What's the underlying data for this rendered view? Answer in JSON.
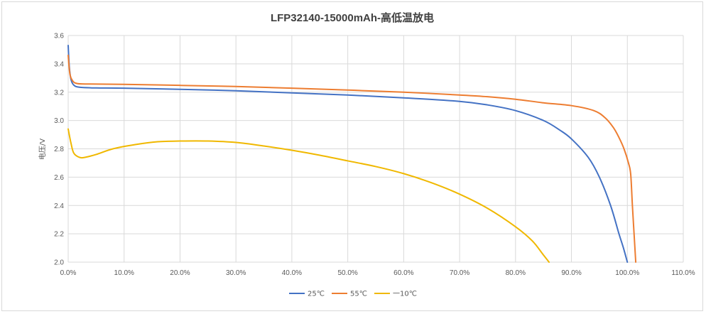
{
  "chart_data": {
    "type": "line",
    "title": "LFP32140-15000mAh-高低温放电",
    "xlabel": "",
    "ylabel": "电压/V",
    "xlim": [
      0,
      110
    ],
    "ylim": [
      2.0,
      3.6
    ],
    "x_ticks": [
      "0.0%",
      "10.0%",
      "20.0%",
      "30.0%",
      "40.0%",
      "50.0%",
      "60.0%",
      "70.0%",
      "80.0%",
      "90.0%",
      "100.0%",
      "110.0%"
    ],
    "y_ticks": [
      "2.0",
      "2.2",
      "2.4",
      "2.6",
      "2.8",
      "3.0",
      "3.2",
      "3.4",
      "3.6"
    ],
    "grid": true,
    "legend_position": "bottom",
    "series": [
      {
        "name": "25℃",
        "color": "#4472c4",
        "points": [
          [
            0,
            3.53
          ],
          [
            0.2,
            3.38
          ],
          [
            0.5,
            3.29
          ],
          [
            1.0,
            3.25
          ],
          [
            2,
            3.235
          ],
          [
            5,
            3.23
          ],
          [
            10,
            3.228
          ],
          [
            20,
            3.22
          ],
          [
            30,
            3.21
          ],
          [
            40,
            3.195
          ],
          [
            50,
            3.18
          ],
          [
            60,
            3.16
          ],
          [
            70,
            3.135
          ],
          [
            75,
            3.11
          ],
          [
            80,
            3.07
          ],
          [
            85,
            3.0
          ],
          [
            88,
            2.93
          ],
          [
            90,
            2.87
          ],
          [
            93,
            2.74
          ],
          [
            95,
            2.6
          ],
          [
            97,
            2.4
          ],
          [
            98.5,
            2.2
          ],
          [
            99.3,
            2.1
          ],
          [
            100,
            2.0
          ]
        ]
      },
      {
        "name": "55℃",
        "color": "#ed7d31",
        "points": [
          [
            0,
            3.46
          ],
          [
            0.3,
            3.33
          ],
          [
            0.8,
            3.28
          ],
          [
            1.5,
            3.262
          ],
          [
            3,
            3.258
          ],
          [
            10,
            3.255
          ],
          [
            20,
            3.248
          ],
          [
            30,
            3.24
          ],
          [
            40,
            3.228
          ],
          [
            50,
            3.215
          ],
          [
            60,
            3.2
          ],
          [
            70,
            3.18
          ],
          [
            75,
            3.168
          ],
          [
            80,
            3.15
          ],
          [
            85,
            3.125
          ],
          [
            90,
            3.105
          ],
          [
            94,
            3.07
          ],
          [
            96,
            3.02
          ],
          [
            97.5,
            2.95
          ],
          [
            98.5,
            2.88
          ],
          [
            99.4,
            2.8
          ],
          [
            100.2,
            2.7
          ],
          [
            100.6,
            2.62
          ],
          [
            100.9,
            2.4
          ],
          [
            101.2,
            2.2
          ],
          [
            101.5,
            2.0
          ]
        ]
      },
      {
        "name": "一10℃",
        "color": "#f0b800",
        "points": [
          [
            0,
            2.94
          ],
          [
            0.5,
            2.84
          ],
          [
            1,
            2.77
          ],
          [
            2,
            2.74
          ],
          [
            3,
            2.74
          ],
          [
            5,
            2.76
          ],
          [
            8,
            2.8
          ],
          [
            12,
            2.83
          ],
          [
            16,
            2.85
          ],
          [
            20,
            2.855
          ],
          [
            25,
            2.855
          ],
          [
            30,
            2.845
          ],
          [
            35,
            2.82
          ],
          [
            40,
            2.79
          ],
          [
            45,
            2.755
          ],
          [
            50,
            2.715
          ],
          [
            55,
            2.675
          ],
          [
            60,
            2.625
          ],
          [
            65,
            2.56
          ],
          [
            70,
            2.48
          ],
          [
            75,
            2.38
          ],
          [
            80,
            2.25
          ],
          [
            83,
            2.15
          ],
          [
            85,
            2.05
          ],
          [
            86,
            2.0
          ]
        ]
      }
    ]
  }
}
